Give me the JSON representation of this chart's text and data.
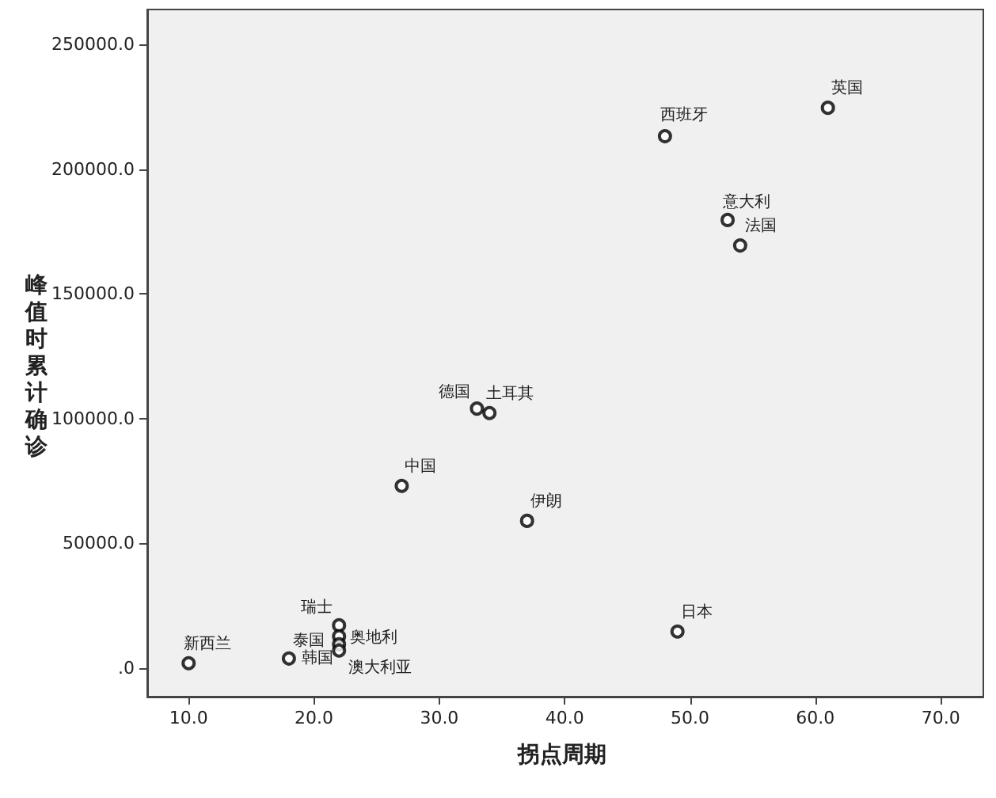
{
  "chart_data": {
    "type": "scatter",
    "xlabel": "拐点周期",
    "ylabel": "峰值时累计确诊",
    "x": [
      61,
      48,
      53,
      54,
      33,
      34,
      27,
      37,
      49,
      22,
      22,
      22,
      22,
      18,
      10
    ],
    "series": [
      {
        "color": "#000000",
        "values": [
          224600,
          213200,
          179600,
          169400,
          104000,
          102200,
          73000,
          59000,
          14600,
          17100,
          12700,
          9500,
          7000,
          3800,
          1900
        ]
      }
    ],
    "xlim": [
      6.7,
      73.4
    ],
    "ylim": [
      -11500,
      264000
    ],
    "xticks": [
      {
        "value": 10,
        "label": "10.0"
      },
      {
        "value": 20,
        "label": "20.0"
      },
      {
        "value": 30,
        "label": "30.0"
      },
      {
        "value": 40,
        "label": "40.0"
      },
      {
        "value": 50,
        "label": "50.0"
      },
      {
        "value": 60,
        "label": "60.0"
      },
      {
        "value": 70,
        "label": "70.0"
      }
    ],
    "yticks": [
      {
        "value": 0,
        "label": ".0"
      },
      {
        "value": 50000,
        "label": "50000.0"
      },
      {
        "value": 100000,
        "label": "100000.0"
      },
      {
        "value": 150000,
        "label": "150000.0"
      },
      {
        "value": 200000,
        "label": "200000.0"
      },
      {
        "value": 250000,
        "label": "250000.0"
      }
    ],
    "marker": "circle",
    "grid": false,
    "annotations": [
      {
        "text": "英国",
        "x": 61,
        "y": 224600
      },
      {
        "text": "西班牙",
        "x": 48,
        "y": 213200
      },
      {
        "text": "意大利",
        "x": 53,
        "y": 179600
      },
      {
        "text": "法国",
        "x": 54,
        "y": 169400
      },
      {
        "text": "德国",
        "x": 33,
        "y": 104000
      },
      {
        "text": "土耳其",
        "x": 34,
        "y": 102200
      },
      {
        "text": "中国",
        "x": 27,
        "y": 73000
      },
      {
        "text": "伊朗",
        "x": 37,
        "y": 59000
      },
      {
        "text": "日本",
        "x": 49,
        "y": 14600
      },
      {
        "text": "瑞士",
        "x": 22,
        "y": 17100
      },
      {
        "text": "奥地利",
        "x": 22,
        "y": 12700
      },
      {
        "text": "泰国",
        "x": 22,
        "y": 9500
      },
      {
        "text": "澳大利亚",
        "x": 22,
        "y": 7000
      },
      {
        "text": "韩国",
        "x": 18,
        "y": 3800
      },
      {
        "text": "新西兰",
        "x": 10,
        "y": 1900
      }
    ]
  }
}
